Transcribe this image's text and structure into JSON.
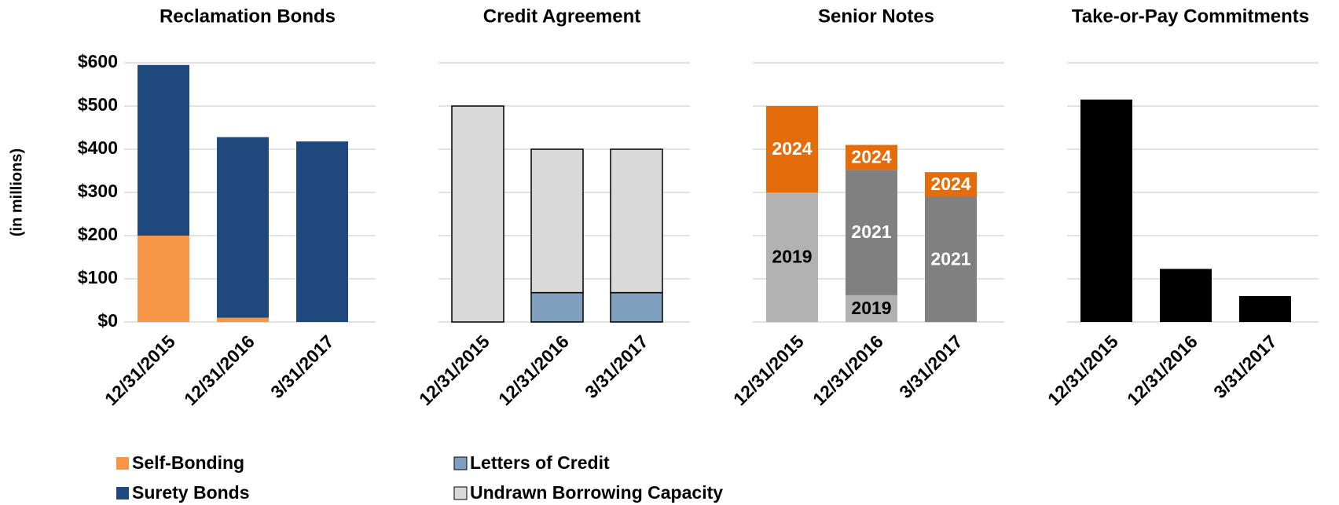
{
  "chart_data": [
    {
      "type": "bar",
      "stacked": true,
      "title": "Reclamation Bonds",
      "ylabel": "(in millions)",
      "categories": [
        "12/31/2015",
        "12/31/2016",
        "3/31/2017"
      ],
      "series": [
        {
          "name": "Self-Bonding",
          "color": "#f79646",
          "values": [
            200,
            10,
            0
          ]
        },
        {
          "name": "Surety Bonds",
          "color": "#1f497d",
          "values": [
            395,
            418,
            418
          ]
        }
      ],
      "ylim": [
        0,
        600
      ],
      "yticks": [
        {
          "value": 0,
          "label": "$0"
        },
        {
          "value": 100,
          "label": "$100"
        },
        {
          "value": 200,
          "label": "$200"
        },
        {
          "value": 300,
          "label": "$300"
        },
        {
          "value": 400,
          "label": "$400"
        },
        {
          "value": 500,
          "label": "$500"
        },
        {
          "value": 600,
          "label": "$600"
        }
      ],
      "grid": true,
      "legend": true
    },
    {
      "type": "bar",
      "stacked": true,
      "title": "Credit Agreement",
      "edgecolor": "#000000",
      "categories": [
        "12/31/2015",
        "12/31/2016",
        "3/31/2017"
      ],
      "series": [
        {
          "name": "Letters of Credit",
          "color": "#7f9fbf",
          "values": [
            0,
            68,
            68
          ]
        },
        {
          "name": "Undrawn Borrowing Capacity",
          "color": "#d9d9d9",
          "values": [
            500,
            332,
            332
          ]
        }
      ],
      "grid": true,
      "legend": true
    },
    {
      "type": "bar",
      "stacked": true,
      "title": "Senior Notes",
      "segment_labels": true,
      "categories": [
        "12/31/2015",
        "12/31/2016",
        "3/31/2017"
      ],
      "series": [
        {
          "name": "2019",
          "color": "#b2b2b2",
          "label_color": "#000000",
          "values": [
            300,
            62,
            0
          ]
        },
        {
          "name": "2021",
          "color": "#808080",
          "label_color": "#ffffff",
          "values": [
            0,
            290,
            290
          ]
        },
        {
          "name": "2024",
          "color": "#e46c0a",
          "label_color": "#ffffff",
          "values": [
            200,
            58,
            57
          ]
        }
      ],
      "grid": true,
      "legend": false
    },
    {
      "type": "bar",
      "title": "Take-or-Pay Commitments",
      "categories": [
        "12/31/2015",
        "12/31/2016",
        "3/31/2017"
      ],
      "values": [
        515,
        123,
        60
      ],
      "color": "#000000",
      "grid": true,
      "legend": false
    }
  ]
}
